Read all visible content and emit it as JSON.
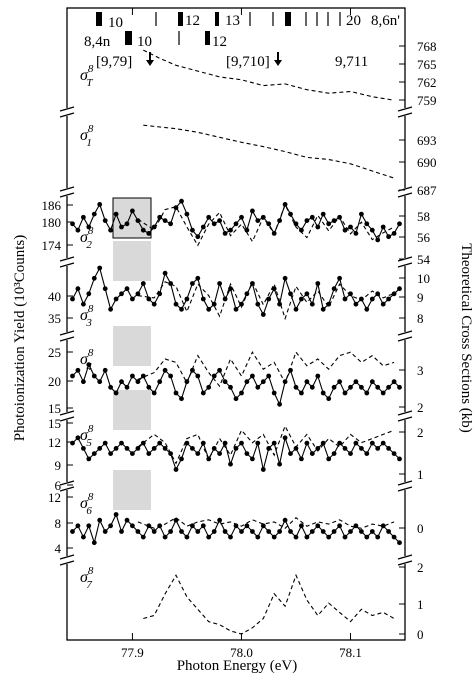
{
  "chart_data": {
    "type": "line",
    "x_label": "Photon Energy (eV)",
    "x_ticks": [
      "77.9",
      "78.0",
      "78.1"
    ],
    "x_tick_values": [
      77.9,
      78.0,
      78.1
    ],
    "xlim": [
      77.84,
      78.15
    ],
    "left_ylabel": "Photoionization Yield (10³Counts)",
    "right_ylabel": "Theoretical Cross Sections (kb)",
    "annotations": {
      "top_row_labels": [
        "10",
        "12",
        "13",
        "20",
        "8,6n'"
      ],
      "second_row_labels": [
        "8,4n",
        "10",
        "12"
      ],
      "thresholds": [
        "[9,79]",
        "[9,710]",
        "9,711"
      ]
    },
    "panels": [
      {
        "label": "σT8",
        "sigma": "σ",
        "sub": "T",
        "sup": "8",
        "right_ticks": [
          "768",
          "765",
          "762",
          "759"
        ],
        "left_ticks": [],
        "theory_x": [
          77.91,
          77.925,
          77.94,
          77.96,
          77.98,
          78.0,
          78.02,
          78.04,
          78.06,
          78.08,
          78.1,
          78.12,
          78.14
        ],
        "theory_y": [
          767.6,
          766.2,
          765.0,
          764.0,
          763.0,
          762.5,
          761.5,
          761.8,
          760.8,
          760.2,
          760.5,
          759.6,
          759.0
        ]
      },
      {
        "label": "σ18",
        "sigma": "σ",
        "sub": "1",
        "sup": "8",
        "right_ticks": [
          "693",
          "690",
          "687"
        ],
        "left_ticks": [],
        "theory_x": [
          77.91,
          77.94,
          77.96,
          77.98,
          78.0,
          78.02,
          78.04,
          78.06,
          78.08,
          78.1,
          78.12,
          78.14
        ],
        "theory_y": [
          695.0,
          694.5,
          694.0,
          693.3,
          692.6,
          692.0,
          691.3,
          690.5,
          690.2,
          689.6,
          688.6,
          687.6
        ]
      },
      {
        "label": "σ28",
        "sigma": "σ",
        "sub": "2",
        "sup": "8",
        "right_ticks": [
          "58",
          "56",
          "54"
        ],
        "left_ticks": [
          "186",
          "180",
          "174"
        ],
        "theory_x": [
          77.905,
          77.92,
          77.93,
          77.94,
          77.95,
          77.96,
          77.97,
          77.98,
          77.99,
          78.0,
          78.01,
          78.02,
          78.03,
          78.04,
          78.05,
          78.06,
          78.07,
          78.08,
          78.09,
          78.1,
          78.11,
          78.12,
          78.13,
          78.14
        ],
        "theory_y": [
          57.3,
          56.2,
          58.3,
          58.6,
          56.5,
          54.6,
          56.8,
          58.0,
          55.6,
          56.8,
          55.0,
          57.5,
          55.8,
          58.8,
          56.5,
          55.4,
          57.7,
          56.1,
          57.6,
          55.8,
          57.0,
          55.2,
          55.9,
          56.5
        ],
        "data_x": [
          77.845,
          77.85,
          77.855,
          77.86,
          77.865,
          77.87,
          77.875,
          77.88,
          77.885,
          77.89,
          77.895,
          77.9,
          77.905,
          77.91,
          77.915,
          77.92,
          77.925,
          77.93,
          77.935,
          77.94,
          77.945,
          77.95,
          77.955,
          77.96,
          77.965,
          77.97,
          77.975,
          77.98,
          77.985,
          77.99,
          77.995,
          78.0,
          78.005,
          78.01,
          78.015,
          78.02,
          78.025,
          78.03,
          78.035,
          78.04,
          78.045,
          78.05,
          78.055,
          78.06,
          78.065,
          78.07,
          78.075,
          78.08,
          78.085,
          78.09,
          78.095,
          78.1,
          78.105,
          78.11,
          78.115,
          78.12,
          78.125,
          78.13,
          78.135,
          78.14,
          78.145
        ],
        "data_y": [
          180,
          178,
          182,
          179,
          183,
          186,
          181,
          178,
          183,
          179,
          180,
          184,
          181,
          178,
          177,
          179,
          182,
          181,
          180,
          185,
          187,
          183,
          178,
          176,
          179,
          182,
          180,
          181,
          177,
          178,
          180,
          182,
          178,
          184,
          181,
          182,
          180,
          177,
          181,
          186,
          183,
          180,
          178,
          181,
          182,
          179,
          183,
          180,
          181,
          182,
          178,
          179,
          177,
          183,
          180,
          178,
          175,
          179,
          176,
          177,
          180
        ]
      },
      {
        "label": "σ38",
        "sigma": "σ",
        "sub": "3",
        "sup": "8",
        "right_ticks": [
          "10",
          "9",
          "8"
        ],
        "left_ticks": [
          "40",
          "35"
        ],
        "theory_x": [
          77.905,
          77.92,
          77.93,
          77.94,
          77.95,
          77.96,
          77.97,
          77.98,
          77.99,
          78.0,
          78.01,
          78.02,
          78.03,
          78.04,
          78.05,
          78.06,
          78.07,
          78.08,
          78.09,
          78.1,
          78.11,
          78.12,
          78.13,
          78.14
        ],
        "theory_y": [
          9.0,
          8.9,
          9.6,
          9.4,
          8.3,
          9.5,
          9.0,
          8.1,
          9.5,
          8.5,
          9.6,
          8.6,
          9.5,
          8.0,
          9.4,
          8.7,
          9.2,
          8.5,
          9.5,
          9.0,
          8.8,
          9.2,
          8.9,
          9.1
        ],
        "data_x": [
          77.845,
          77.85,
          77.855,
          77.86,
          77.865,
          77.87,
          77.875,
          77.88,
          77.885,
          77.89,
          77.895,
          77.9,
          77.905,
          77.91,
          77.915,
          77.92,
          77.925,
          77.93,
          77.935,
          77.94,
          77.945,
          77.95,
          77.955,
          77.96,
          77.965,
          77.97,
          77.975,
          77.98,
          77.985,
          77.99,
          77.995,
          78.0,
          78.005,
          78.01,
          78.015,
          78.02,
          78.025,
          78.03,
          78.035,
          78.04,
          78.045,
          78.05,
          78.055,
          78.06,
          78.065,
          78.07,
          78.075,
          78.08,
          78.085,
          78.09,
          78.095,
          78.1,
          78.105,
          78.11,
          78.115,
          78.12,
          78.125,
          78.13,
          78.135,
          78.14,
          78.145
        ],
        "data_y": [
          38,
          40,
          37,
          39,
          42,
          44,
          40,
          36,
          38,
          39,
          40,
          38,
          39,
          41,
          38,
          37,
          39,
          43,
          41,
          37,
          36,
          38,
          41,
          42,
          38,
          36,
          37,
          41,
          38,
          40,
          36,
          37,
          39,
          41,
          37,
          35,
          38,
          40,
          37,
          42,
          39,
          36,
          38,
          39,
          37,
          41,
          36,
          37,
          40,
          42,
          38,
          39,
          37,
          38,
          36,
          38,
          39,
          37,
          38,
          39,
          40
        ]
      },
      {
        "label": "σ48",
        "sigma": "σ",
        "sub": "4",
        "sup": "8",
        "right_ticks": [
          "3",
          "2"
        ],
        "left_ticks": [
          "25",
          "20",
          "15"
        ],
        "theory_x": [
          77.905,
          77.92,
          77.93,
          77.94,
          77.95,
          77.96,
          77.97,
          77.98,
          77.99,
          78.0,
          78.01,
          78.02,
          78.03,
          78.04,
          78.05,
          78.06,
          78.07,
          78.08,
          78.09,
          78.1,
          78.11,
          78.12,
          78.13,
          78.14
        ],
        "theory_y": [
          2.7,
          2.9,
          3.3,
          3.2,
          2.6,
          3.4,
          2.9,
          2.5,
          3.3,
          2.8,
          3.5,
          3.0,
          3.2,
          2.6,
          3.5,
          3.1,
          3.3,
          3.0,
          3.4,
          3.5,
          3.2,
          3.4,
          3.1,
          3.2
        ],
        "data_x": [
          77.845,
          77.85,
          77.855,
          77.86,
          77.865,
          77.87,
          77.875,
          77.88,
          77.885,
          77.89,
          77.895,
          77.9,
          77.905,
          77.91,
          77.915,
          77.92,
          77.925,
          77.93,
          77.935,
          77.94,
          77.945,
          77.95,
          77.955,
          77.96,
          77.965,
          77.97,
          77.975,
          77.98,
          77.985,
          77.99,
          77.995,
          78.0,
          78.005,
          78.01,
          78.015,
          78.02,
          78.025,
          78.03,
          78.035,
          78.04,
          78.045,
          78.05,
          78.055,
          78.06,
          78.065,
          78.07,
          78.075,
          78.08,
          78.085,
          78.09,
          78.095,
          78.1,
          78.105,
          78.11,
          78.115,
          78.12,
          78.125,
          78.13,
          78.135,
          78.14,
          78.145
        ],
        "data_y": [
          20,
          21,
          19,
          22,
          20,
          19,
          21,
          18,
          17,
          19,
          18,
          20,
          19,
          20,
          18,
          17,
          19,
          21,
          20,
          17,
          16,
          19,
          21,
          20,
          17,
          18,
          20,
          21,
          19,
          18,
          16,
          17,
          19,
          20,
          18,
          19,
          20,
          17,
          15,
          19,
          21,
          18,
          17,
          19,
          18,
          20,
          17,
          16,
          18,
          19,
          17,
          18,
          19,
          18,
          17,
          19,
          18,
          17,
          18,
          19,
          18
        ]
      },
      {
        "label": "σ58",
        "sigma": "σ",
        "sub": "5",
        "sup": "8",
        "right_ticks": [
          "2",
          "1"
        ],
        "left_ticks": [
          "15",
          "12",
          "9",
          "6"
        ],
        "theory_x": [
          77.905,
          77.92,
          77.93,
          77.94,
          77.95,
          77.96,
          77.97,
          77.98,
          77.99,
          78.0,
          78.01,
          78.02,
          78.03,
          78.04,
          78.05,
          78.06,
          78.07,
          78.08,
          78.09,
          78.1,
          78.11,
          78.12,
          78.13,
          78.14
        ],
        "theory_y": [
          1.6,
          1.9,
          1.7,
          1.2,
          1.8,
          1.9,
          1.3,
          1.8,
          1.4,
          2.0,
          1.7,
          1.9,
          1.4,
          2.1,
          1.6,
          1.9,
          1.5,
          1.8,
          1.6,
          1.9,
          1.7,
          1.8,
          1.9,
          2.0
        ],
        "data_x": [
          77.845,
          77.85,
          77.855,
          77.86,
          77.865,
          77.87,
          77.875,
          77.88,
          77.885,
          77.89,
          77.895,
          77.9,
          77.905,
          77.91,
          77.915,
          77.92,
          77.925,
          77.93,
          77.935,
          77.94,
          77.945,
          77.95,
          77.955,
          77.96,
          77.965,
          77.97,
          77.975,
          77.98,
          77.985,
          77.99,
          77.995,
          78.0,
          78.005,
          78.01,
          78.015,
          78.02,
          78.025,
          78.03,
          78.035,
          78.04,
          78.045,
          78.05,
          78.055,
          78.06,
          78.065,
          78.07,
          78.075,
          78.08,
          78.085,
          78.09,
          78.095,
          78.1,
          78.105,
          78.11,
          78.115,
          78.12,
          78.125,
          78.13,
          78.135,
          78.14,
          78.145
        ],
        "data_y": [
          12,
          13,
          11,
          9,
          10,
          11,
          12,
          10,
          11,
          12,
          11,
          10,
          11,
          12,
          10,
          11,
          12,
          11,
          10,
          7,
          9,
          12,
          11,
          10,
          12,
          9,
          11,
          10,
          12,
          8,
          11,
          12,
          10,
          9,
          12,
          7,
          11,
          12,
          8,
          13,
          10,
          11,
          9,
          12,
          10,
          11,
          12,
          9,
          10,
          12,
          11,
          10,
          12,
          11,
          10,
          12,
          11,
          12,
          11,
          10,
          9
        ]
      },
      {
        "label": "σ68",
        "sigma": "σ",
        "sub": "6",
        "sup": "8",
        "right_ticks": [
          "0"
        ],
        "left_ticks": [
          "12",
          "8",
          "4"
        ],
        "theory_x": [
          77.905,
          77.92,
          77.93,
          77.94,
          77.95,
          77.96,
          77.97,
          77.98,
          77.99,
          78.0,
          78.01,
          78.02,
          78.03,
          78.04,
          78.05,
          78.06,
          78.07,
          78.08,
          78.09,
          78.1,
          78.11,
          78.12,
          78.13,
          78.14
        ],
        "theory_y": [
          0.6,
          0.3,
          0.5,
          0.8,
          0.4,
          0.6,
          0.7,
          0.5,
          0.6,
          0.4,
          0.7,
          0.5,
          0.6,
          0.3,
          0.8,
          0.4,
          0.6,
          0.5,
          0.7,
          0.4,
          0.3,
          0.5,
          0.4,
          0.6
        ],
        "data_x": [
          77.845,
          77.85,
          77.855,
          77.86,
          77.865,
          77.87,
          77.875,
          77.88,
          77.885,
          77.89,
          77.895,
          77.9,
          77.905,
          77.91,
          77.915,
          77.92,
          77.925,
          77.93,
          77.935,
          77.94,
          77.945,
          77.95,
          77.955,
          77.96,
          77.965,
          77.97,
          77.975,
          77.98,
          77.985,
          77.99,
          77.995,
          78.0,
          78.005,
          78.01,
          78.015,
          78.02,
          78.025,
          78.03,
          78.035,
          78.04,
          78.045,
          78.05,
          78.055,
          78.06,
          78.065,
          78.07,
          78.075,
          78.08,
          78.085,
          78.09,
          78.095,
          78.1,
          78.105,
          78.11,
          78.115,
          78.12,
          78.125,
          78.13,
          78.135,
          78.14,
          78.145
        ],
        "data_y": [
          6,
          7,
          5,
          7,
          4,
          8,
          6,
          7,
          9,
          6,
          8,
          7,
          6,
          5,
          7,
          6,
          7,
          5,
          6,
          8,
          6,
          5,
          7,
          6,
          7,
          5,
          6,
          8,
          6,
          5,
          7,
          6,
          7,
          6,
          5,
          7,
          6,
          5,
          6,
          8,
          6,
          5,
          7,
          5,
          6,
          7,
          6,
          5,
          6,
          7,
          5,
          6,
          7,
          6,
          5,
          6,
          5,
          7,
          6,
          5,
          4
        ]
      },
      {
        "label": "σ78",
        "sigma": "σ",
        "sub": "7",
        "sup": "8",
        "right_ticks": [
          "2",
          "1",
          "0"
        ],
        "left_ticks": [],
        "theory_x": [
          77.91,
          77.92,
          77.93,
          77.94,
          77.95,
          77.96,
          77.97,
          77.98,
          77.99,
          78.0,
          78.01,
          78.02,
          78.03,
          78.04,
          78.05,
          78.06,
          78.07,
          78.08,
          78.09,
          78.1,
          78.11,
          78.12,
          78.13,
          78.14
        ],
        "theory_y": [
          0.5,
          0.6,
          1.3,
          1.9,
          1.2,
          0.8,
          0.4,
          0.3,
          0.1,
          0.0,
          0.2,
          0.5,
          1.3,
          0.9,
          1.9,
          1.1,
          0.6,
          1.0,
          0.7,
          0.4,
          0.8,
          0.6,
          0.7,
          0.5
        ]
      }
    ]
  }
}
